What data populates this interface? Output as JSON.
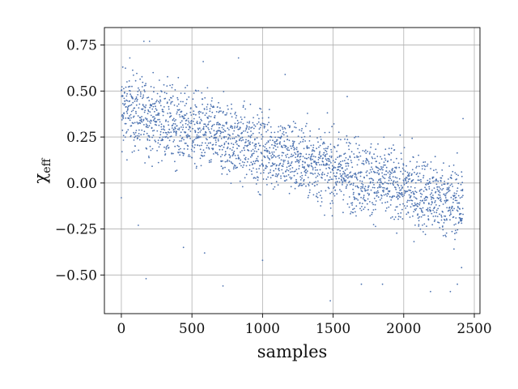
{
  "chart_data": {
    "type": "scatter",
    "xlabel": "samples",
    "ylabel": "χ_eff",
    "ylabel_main": "χ",
    "ylabel_sub": "eff",
    "xlim": [
      -120,
      2540
    ],
    "ylim": [
      -0.71,
      0.845
    ],
    "xticks": [
      0,
      500,
      1000,
      1500,
      2000,
      2500
    ],
    "xtick_labels": [
      "0",
      "500",
      "1000",
      "1500",
      "2000",
      "2500"
    ],
    "yticks": [
      -0.5,
      -0.25,
      0.0,
      0.25,
      0.5,
      0.75
    ],
    "ytick_labels": [
      "−0.50",
      "−0.25",
      "0.00",
      "0.25",
      "0.50",
      "0.75"
    ],
    "grid": true,
    "marker_color": "#4c72b0",
    "n_points": 2420,
    "trend": {
      "x_start": 0,
      "x_end": 2420,
      "y_start": 0.4,
      "y_end": -0.12,
      "spread": 0.2
    },
    "series": [
      {
        "values": [
          {
            "x": 0,
            "y": -0.08
          },
          {
            "x": 5,
            "y": 0.17
          },
          {
            "x": 10,
            "y": 0.63
          },
          {
            "x": 20,
            "y": 0.46
          },
          {
            "x": 40,
            "y": 0.55
          },
          {
            "x": 60,
            "y": 0.68
          },
          {
            "x": 120,
            "y": -0.23
          },
          {
            "x": 160,
            "y": 0.77
          },
          {
            "x": 175,
            "y": -0.52
          },
          {
            "x": 200,
            "y": 0.77
          },
          {
            "x": 440,
            "y": -0.35
          },
          {
            "x": 580,
            "y": 0.66
          },
          {
            "x": 590,
            "y": -0.38
          },
          {
            "x": 720,
            "y": -0.56
          },
          {
            "x": 830,
            "y": 0.68
          },
          {
            "x": 1000,
            "y": -0.42
          },
          {
            "x": 1160,
            "y": 0.59
          },
          {
            "x": 1480,
            "y": -0.64
          },
          {
            "x": 1600,
            "y": 0.47
          },
          {
            "x": 1700,
            "y": -0.55
          },
          {
            "x": 1850,
            "y": -0.55
          },
          {
            "x": 2190,
            "y": -0.59
          },
          {
            "x": 2330,
            "y": -0.59
          },
          {
            "x": 2380,
            "y": -0.55
          },
          {
            "x": 2410,
            "y": -0.46
          },
          {
            "x": 2420,
            "y": 0.35
          },
          {
            "x": 2410,
            "y": 0.06
          }
        ]
      }
    ]
  }
}
